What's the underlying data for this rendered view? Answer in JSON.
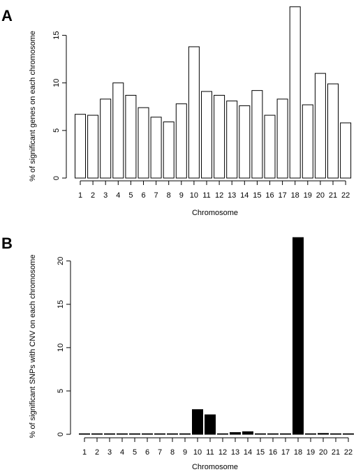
{
  "chart_data": [
    {
      "panel": "A",
      "type": "bar",
      "title": "",
      "xlabel": "Chromosome",
      "ylabel": "% of significant genes on each chromosome",
      "ylim": [
        0,
        18.2
      ],
      "yticks": [
        0,
        5,
        10,
        15
      ],
      "categories": [
        "1",
        "2",
        "3",
        "4",
        "5",
        "6",
        "7",
        "8",
        "9",
        "10",
        "11",
        "12",
        "13",
        "14",
        "15",
        "16",
        "17",
        "18",
        "19",
        "20",
        "21",
        "22"
      ],
      "values": [
        6.7,
        6.6,
        8.3,
        10.0,
        8.7,
        7.4,
        6.4,
        5.9,
        7.8,
        13.8,
        9.1,
        8.7,
        8.1,
        7.6,
        9.2,
        6.6,
        8.3,
        18.0,
        7.7,
        11.0,
        9.9,
        5.8
      ],
      "bar_color": "#ffffff",
      "bar_stroke": "#000000",
      "grid": false
    },
    {
      "panel": "B",
      "type": "bar",
      "title": "",
      "xlabel": "Chromosome",
      "ylabel": "% of significant SNPs with CNV on each chromosome",
      "ylim": [
        0,
        22.8
      ],
      "yticks": [
        0,
        5,
        10,
        15,
        20
      ],
      "categories": [
        "1",
        "2",
        "3",
        "4",
        "5",
        "6",
        "7",
        "8",
        "9",
        "10",
        "11",
        "12",
        "13",
        "14",
        "15",
        "16",
        "17",
        "18",
        "19",
        "20",
        "21",
        "22"
      ],
      "values": [
        0.05,
        0.05,
        0.05,
        0.03,
        0.03,
        0.05,
        0.03,
        0.03,
        0.05,
        2.85,
        2.25,
        0.05,
        0.2,
        0.3,
        0.05,
        0.03,
        0.05,
        22.7,
        0.03,
        0.1,
        0.03,
        0.03
      ],
      "bar_color": "#000000",
      "bar_stroke": "#000000",
      "grid": false
    }
  ]
}
